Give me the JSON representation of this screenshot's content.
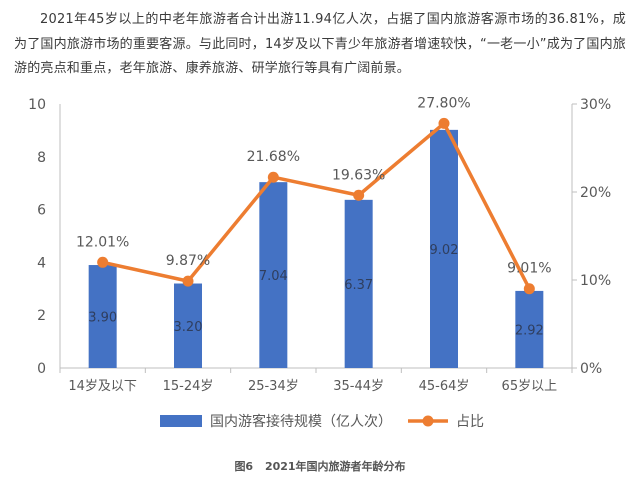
{
  "intro": {
    "text": "2021年45岁以上的中老年旅游者合计出游11.94亿人次，占据了国内旅游客源市场的36.81%，成为了国内旅游市场的重要客源。与此同时，14岁及以下青少年旅游者增速较快，“一老一小”成为了国内旅游的亮点和重点，老年旅游、康养旅游、研学旅行等具有广阔前景。"
  },
  "caption": {
    "label": "图6",
    "title": "2021年国内旅游者年龄分布"
  },
  "colors": {
    "bar": "#4472C4",
    "line": "#ED7D31",
    "axis": "#bfbfbf",
    "text": "#595959"
  },
  "chart_data": {
    "type": "bar",
    "categories": [
      "14岁及以下",
      "15-24岁",
      "25-34岁",
      "35-44岁",
      "45-64岁",
      "65岁以上"
    ],
    "series": [
      {
        "name": "国内游客接待规模（亿人次）",
        "type": "bar",
        "axis": "left",
        "values": [
          3.9,
          3.2,
          7.04,
          6.37,
          9.02,
          2.92
        ],
        "labels": [
          "3.90",
          "3.20",
          "7.04",
          "6.37",
          "9.02",
          "2.92"
        ]
      },
      {
        "name": "占比",
        "type": "line",
        "axis": "right",
        "values": [
          12.01,
          9.87,
          21.68,
          19.63,
          27.8,
          9.01
        ],
        "labels": [
          "12.01%",
          "9.87%",
          "21.68%",
          "19.63%",
          "27.80%",
          "9.01%"
        ]
      }
    ],
    "ylim": [
      0,
      10
    ],
    "yticks": [
      "0",
      "2",
      "4",
      "6",
      "8",
      "10"
    ],
    "y2lim": [
      0,
      30
    ],
    "y2ticks": [
      "0%",
      "10%",
      "20%",
      "30%"
    ],
    "legend_position": "bottom",
    "grid": false
  }
}
